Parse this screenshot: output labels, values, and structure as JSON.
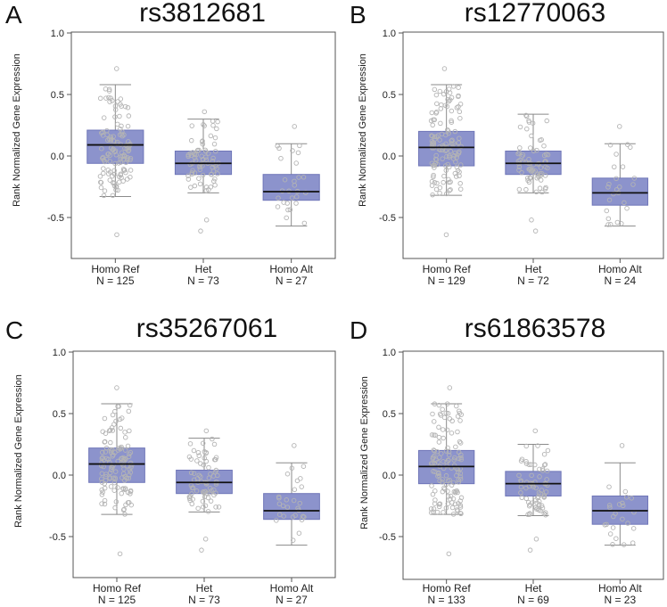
{
  "chart_data": [
    {
      "type": "box",
      "panel_label": "A",
      "title": "rs3812681",
      "ylabel": "Rank Normalized Gene Expression",
      "xlabel": "",
      "ylim": [
        -0.78,
        1.0
      ],
      "yticks": [
        1.0,
        0.5,
        0.0,
        -0.5
      ],
      "ytick_labels": [
        "1.0",
        "0.5",
        "0.0",
        "-0.5"
      ],
      "categories": [
        "Homo Ref",
        "Het",
        "Homo Alt"
      ],
      "counts": [
        "N = 125",
        "N = 73",
        "N = 27"
      ],
      "boxes": [
        {
          "q1": -0.06,
          "median": 0.09,
          "q3": 0.21,
          "whisker_low": -0.33,
          "whisker_high": 0.58,
          "outliers": [
            -0.64,
            0.71
          ]
        },
        {
          "q1": -0.15,
          "median": -0.06,
          "q3": 0.04,
          "whisker_low": -0.3,
          "whisker_high": 0.3,
          "outliers": [
            -0.52,
            -0.61,
            0.36
          ]
        },
        {
          "q1": -0.36,
          "median": -0.29,
          "q3": -0.15,
          "whisker_low": -0.57,
          "whisker_high": 0.1,
          "outliers": [
            0.24
          ]
        }
      ],
      "box_color": "#8c93cc",
      "box_edge_color": "#6f76b8",
      "point_color": "#b4b4b4"
    },
    {
      "type": "box",
      "panel_label": "B",
      "title": "rs12770063",
      "ylabel": "Rank Normalized Gene Expression",
      "xlabel": "",
      "ylim": [
        -0.78,
        1.0
      ],
      "yticks": [
        1.0,
        0.5,
        0.0,
        -0.5
      ],
      "ytick_labels": [
        "1.0",
        "0.5",
        "0.0",
        "-0.5"
      ],
      "categories": [
        "Homo Ref",
        "Het",
        "Homo Alt"
      ],
      "counts": [
        "N = 129",
        "N = 72",
        "N = 24"
      ],
      "boxes": [
        {
          "q1": -0.08,
          "median": 0.07,
          "q3": 0.2,
          "whisker_low": -0.32,
          "whisker_high": 0.58,
          "outliers": [
            -0.64,
            0.71
          ]
        },
        {
          "q1": -0.15,
          "median": -0.06,
          "q3": 0.04,
          "whisker_low": -0.3,
          "whisker_high": 0.34,
          "outliers": [
            -0.52,
            -0.61
          ]
        },
        {
          "q1": -0.4,
          "median": -0.3,
          "q3": -0.18,
          "whisker_low": -0.57,
          "whisker_high": 0.1,
          "outliers": [
            0.24
          ]
        }
      ],
      "box_color": "#8c93cc",
      "box_edge_color": "#6f76b8",
      "point_color": "#b4b4b4"
    },
    {
      "type": "box",
      "panel_label": "C",
      "title": "rs35267061",
      "ylabel": "Rank Normalized Gene Expression",
      "xlabel": "",
      "ylim": [
        -0.78,
        1.0
      ],
      "yticks": [
        1.0,
        0.5,
        0.0,
        -0.5
      ],
      "ytick_labels": [
        "1.0",
        "0.5",
        "0.0",
        "-0.5"
      ],
      "categories": [
        "Homo Ref",
        "Het",
        "Homo Alt"
      ],
      "counts": [
        "N = 125",
        "N = 73",
        "N = 27"
      ],
      "boxes": [
        {
          "q1": -0.06,
          "median": 0.09,
          "q3": 0.22,
          "whisker_low": -0.32,
          "whisker_high": 0.58,
          "outliers": [
            -0.64,
            0.71
          ]
        },
        {
          "q1": -0.15,
          "median": -0.06,
          "q3": 0.04,
          "whisker_low": -0.3,
          "whisker_high": 0.3,
          "outliers": [
            -0.52,
            -0.61,
            0.36
          ]
        },
        {
          "q1": -0.36,
          "median": -0.29,
          "q3": -0.15,
          "whisker_low": -0.57,
          "whisker_high": 0.1,
          "outliers": [
            0.24
          ]
        }
      ],
      "box_color": "#8c93cc",
      "box_edge_color": "#6f76b8",
      "point_color": "#b4b4b4"
    },
    {
      "type": "box",
      "panel_label": "D",
      "title": "rs61863578",
      "ylabel": "Rank Normalized Gene Expression",
      "xlabel": "",
      "ylim": [
        -0.78,
        1.0
      ],
      "yticks": [
        1.0,
        0.5,
        0.0,
        -0.5
      ],
      "ytick_labels": [
        "1.0",
        "0.5",
        "0.0",
        "-0.5"
      ],
      "categories": [
        "Homo Ref",
        "Het",
        "Homo Alt"
      ],
      "counts": [
        "N = 133",
        "N = 69",
        "N = 23"
      ],
      "boxes": [
        {
          "q1": -0.07,
          "median": 0.07,
          "q3": 0.2,
          "whisker_low": -0.32,
          "whisker_high": 0.58,
          "outliers": [
            -0.64,
            0.71
          ]
        },
        {
          "q1": -0.17,
          "median": -0.07,
          "q3": 0.03,
          "whisker_low": -0.33,
          "whisker_high": 0.25,
          "outliers": [
            -0.52,
            -0.61,
            0.36
          ]
        },
        {
          "q1": -0.4,
          "median": -0.29,
          "q3": -0.17,
          "whisker_low": -0.57,
          "whisker_high": 0.1,
          "outliers": [
            0.24
          ]
        }
      ],
      "box_color": "#8c93cc",
      "box_edge_color": "#6f76b8",
      "point_color": "#b4b4b4"
    }
  ]
}
